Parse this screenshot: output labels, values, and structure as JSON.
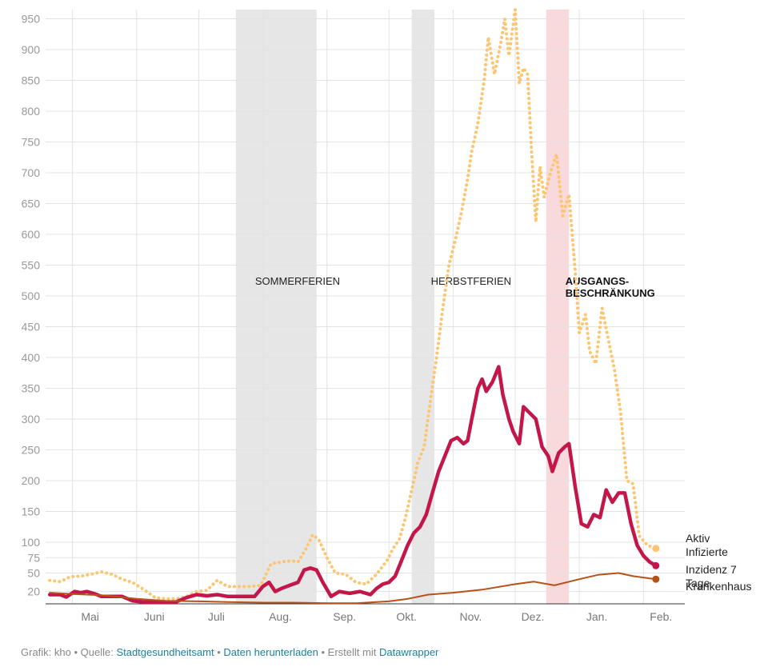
{
  "chart_data": {
    "type": "line",
    "title": "",
    "xlabel": "",
    "ylabel": "",
    "ylim": [
      0,
      965
    ],
    "yticks": [
      20,
      50,
      75,
      100,
      150,
      200,
      250,
      300,
      350,
      400,
      450,
      500,
      550,
      600,
      650,
      700,
      750,
      800,
      850,
      900,
      950
    ],
    "grid": true,
    "xlim": [
      "2020-04-18",
      "2021-02-21"
    ],
    "xticks": [
      {
        "date": "2020-05-01",
        "label": "Mai"
      },
      {
        "date": "2020-06-01",
        "label": "Juni"
      },
      {
        "date": "2020-07-01",
        "label": "Juli"
      },
      {
        "date": "2020-08-01",
        "label": "Aug."
      },
      {
        "date": "2020-09-01",
        "label": "Sep."
      },
      {
        "date": "2020-10-01",
        "label": "Okt."
      },
      {
        "date": "2020-11-01",
        "label": "Nov."
      },
      {
        "date": "2020-12-01",
        "label": "Dez."
      },
      {
        "date": "2021-01-01",
        "label": "Jan."
      },
      {
        "date": "2021-02-01",
        "label": "Feb."
      }
    ],
    "bands": [
      {
        "name": "SOMMERFERIEN",
        "start": "2020-07-19",
        "end": "2020-08-27",
        "color": "#e6e6e6",
        "bold": false
      },
      {
        "name": "HERBSTFERIEN",
        "start": "2020-10-12",
        "end": "2020-10-23",
        "color": "#e6e6e6",
        "bold": false
      },
      {
        "name": "AUSGANGS-|BESCHRÄNKUNG",
        "start": "2020-12-16",
        "end": "2020-12-27",
        "color": "#f8d9dc",
        "bold": true
      }
    ],
    "series": [
      {
        "name": "Aktiv Infizierte",
        "label_lines": [
          "Aktiv",
          "Infizierte"
        ],
        "color": "#fdc56f",
        "style": "dotted",
        "points": [
          [
            "2020-04-20",
            38
          ],
          [
            "2020-04-25",
            36
          ],
          [
            "2020-04-30",
            44
          ],
          [
            "2020-05-05",
            45
          ],
          [
            "2020-05-10",
            48
          ],
          [
            "2020-05-15",
            52
          ],
          [
            "2020-05-20",
            48
          ],
          [
            "2020-05-25",
            40
          ],
          [
            "2020-05-30",
            35
          ],
          [
            "2020-06-05",
            22
          ],
          [
            "2020-06-10",
            10
          ],
          [
            "2020-06-15",
            8
          ],
          [
            "2020-06-20",
            8
          ],
          [
            "2020-06-25",
            12
          ],
          [
            "2020-06-30",
            20
          ],
          [
            "2020-07-05",
            22
          ],
          [
            "2020-07-10",
            38
          ],
          [
            "2020-07-15",
            28
          ],
          [
            "2020-07-20",
            28
          ],
          [
            "2020-07-25",
            28
          ],
          [
            "2020-07-31",
            30
          ],
          [
            "2020-08-05",
            65
          ],
          [
            "2020-08-10",
            68
          ],
          [
            "2020-08-15",
            70
          ],
          [
            "2020-08-18",
            68
          ],
          [
            "2020-08-22",
            90
          ],
          [
            "2020-08-25",
            112
          ],
          [
            "2020-08-28",
            105
          ],
          [
            "2020-09-01",
            75
          ],
          [
            "2020-09-05",
            50
          ],
          [
            "2020-09-10",
            48
          ],
          [
            "2020-09-15",
            35
          ],
          [
            "2020-09-20",
            32
          ],
          [
            "2020-09-25",
            48
          ],
          [
            "2020-09-30",
            70
          ],
          [
            "2020-10-03",
            90
          ],
          [
            "2020-10-06",
            105
          ],
          [
            "2020-10-09",
            140
          ],
          [
            "2020-10-12",
            185
          ],
          [
            "2020-10-15",
            230
          ],
          [
            "2020-10-18",
            255
          ],
          [
            "2020-10-21",
            330
          ],
          [
            "2020-10-24",
            400
          ],
          [
            "2020-10-27",
            480
          ],
          [
            "2020-10-30",
            550
          ],
          [
            "2020-11-02",
            590
          ],
          [
            "2020-11-05",
            635
          ],
          [
            "2020-11-08",
            690
          ],
          [
            "2020-11-10",
            735
          ],
          [
            "2020-11-13",
            780
          ],
          [
            "2020-11-16",
            850
          ],
          [
            "2020-11-18",
            920
          ],
          [
            "2020-11-21",
            860
          ],
          [
            "2020-11-24",
            910
          ],
          [
            "2020-11-26",
            950
          ],
          [
            "2020-11-28",
            890
          ],
          [
            "2020-12-01",
            965
          ],
          [
            "2020-12-03",
            845
          ],
          [
            "2020-12-05",
            870
          ],
          [
            "2020-12-07",
            860
          ],
          [
            "2020-12-09",
            730
          ],
          [
            "2020-12-11",
            620
          ],
          [
            "2020-12-13",
            710
          ],
          [
            "2020-12-15",
            660
          ],
          [
            "2020-12-18",
            700
          ],
          [
            "2020-12-21",
            730
          ],
          [
            "2020-12-24",
            630
          ],
          [
            "2020-12-27",
            665
          ],
          [
            "2020-12-30",
            540
          ],
          [
            "2021-01-01",
            440
          ],
          [
            "2021-01-04",
            470
          ],
          [
            "2021-01-06",
            410
          ],
          [
            "2021-01-09",
            390
          ],
          [
            "2021-01-12",
            480
          ],
          [
            "2021-01-15",
            430
          ],
          [
            "2021-01-18",
            380
          ],
          [
            "2021-01-21",
            310
          ],
          [
            "2021-01-24",
            200
          ],
          [
            "2021-01-27",
            195
          ],
          [
            "2021-01-30",
            110
          ],
          [
            "2021-02-03",
            95
          ],
          [
            "2021-02-07",
            90
          ]
        ]
      },
      {
        "name": "Inzidenz 7 Tage",
        "label_lines": [
          "Inzidenz 7",
          "Tage"
        ],
        "color": "#c3174a",
        "style": "solid",
        "points": [
          [
            "2020-04-20",
            15
          ],
          [
            "2020-04-25",
            15
          ],
          [
            "2020-04-28",
            11
          ],
          [
            "2020-05-02",
            20
          ],
          [
            "2020-05-05",
            18
          ],
          [
            "2020-05-08",
            20
          ],
          [
            "2020-05-12",
            16
          ],
          [
            "2020-05-15",
            12
          ],
          [
            "2020-05-20",
            12
          ],
          [
            "2020-05-25",
            12
          ],
          [
            "2020-05-30",
            5
          ],
          [
            "2020-06-05",
            3
          ],
          [
            "2020-06-10",
            3
          ],
          [
            "2020-06-15",
            3
          ],
          [
            "2020-06-20",
            3
          ],
          [
            "2020-06-25",
            10
          ],
          [
            "2020-06-30",
            15
          ],
          [
            "2020-07-05",
            13
          ],
          [
            "2020-07-10",
            15
          ],
          [
            "2020-07-15",
            12
          ],
          [
            "2020-07-20",
            12
          ],
          [
            "2020-07-25",
            12
          ],
          [
            "2020-07-28",
            12
          ],
          [
            "2020-08-01",
            28
          ],
          [
            "2020-08-04",
            35
          ],
          [
            "2020-08-07",
            20
          ],
          [
            "2020-08-10",
            25
          ],
          [
            "2020-08-14",
            30
          ],
          [
            "2020-08-18",
            35
          ],
          [
            "2020-08-21",
            55
          ],
          [
            "2020-08-24",
            58
          ],
          [
            "2020-08-27",
            55
          ],
          [
            "2020-08-30",
            35
          ],
          [
            "2020-09-03",
            12
          ],
          [
            "2020-09-07",
            20
          ],
          [
            "2020-09-12",
            17
          ],
          [
            "2020-09-17",
            20
          ],
          [
            "2020-09-22",
            15
          ],
          [
            "2020-09-25",
            25
          ],
          [
            "2020-09-28",
            32
          ],
          [
            "2020-10-01",
            35
          ],
          [
            "2020-10-04",
            45
          ],
          [
            "2020-10-07",
            70
          ],
          [
            "2020-10-10",
            95
          ],
          [
            "2020-10-13",
            115
          ],
          [
            "2020-10-16",
            125
          ],
          [
            "2020-10-19",
            145
          ],
          [
            "2020-10-22",
            180
          ],
          [
            "2020-10-25",
            215
          ],
          [
            "2020-10-28",
            240
          ],
          [
            "2020-10-31",
            265
          ],
          [
            "2020-11-03",
            270
          ],
          [
            "2020-11-06",
            260
          ],
          [
            "2020-11-08",
            265
          ],
          [
            "2020-11-10",
            300
          ],
          [
            "2020-11-13",
            350
          ],
          [
            "2020-11-15",
            365
          ],
          [
            "2020-11-17",
            345
          ],
          [
            "2020-11-20",
            360
          ],
          [
            "2020-11-23",
            385
          ],
          [
            "2020-11-25",
            340
          ],
          [
            "2020-11-28",
            300
          ],
          [
            "2020-11-30",
            280
          ],
          [
            "2020-12-03",
            260
          ],
          [
            "2020-12-05",
            320
          ],
          [
            "2020-12-08",
            310
          ],
          [
            "2020-12-11",
            300
          ],
          [
            "2020-12-14",
            255
          ],
          [
            "2020-12-17",
            240
          ],
          [
            "2020-12-19",
            215
          ],
          [
            "2020-12-22",
            245
          ],
          [
            "2020-12-25",
            255
          ],
          [
            "2020-12-27",
            260
          ],
          [
            "2020-12-30",
            190
          ],
          [
            "2021-01-02",
            130
          ],
          [
            "2021-01-05",
            125
          ],
          [
            "2021-01-08",
            145
          ],
          [
            "2021-01-11",
            140
          ],
          [
            "2021-01-14",
            185
          ],
          [
            "2021-01-17",
            165
          ],
          [
            "2021-01-20",
            180
          ],
          [
            "2021-01-23",
            180
          ],
          [
            "2021-01-26",
            130
          ],
          [
            "2021-01-29",
            95
          ],
          [
            "2021-02-01",
            78
          ],
          [
            "2021-02-04",
            68
          ],
          [
            "2021-02-07",
            62
          ]
        ]
      },
      {
        "name": "Krankenhaus",
        "label_lines": [
          "Krankenhaus"
        ],
        "color": "#b65217",
        "style": "solid",
        "points": [
          [
            "2020-04-20",
            18
          ],
          [
            "2020-05-01",
            16
          ],
          [
            "2020-05-15",
            14
          ],
          [
            "2020-06-01",
            8
          ],
          [
            "2020-06-15",
            5
          ],
          [
            "2020-07-01",
            4
          ],
          [
            "2020-07-15",
            3
          ],
          [
            "2020-08-01",
            2
          ],
          [
            "2020-08-15",
            2
          ],
          [
            "2020-09-01",
            1
          ],
          [
            "2020-09-15",
            1
          ],
          [
            "2020-10-01",
            4
          ],
          [
            "2020-10-10",
            8
          ],
          [
            "2020-10-20",
            15
          ],
          [
            "2020-11-01",
            18
          ],
          [
            "2020-11-15",
            23
          ],
          [
            "2020-12-01",
            32
          ],
          [
            "2020-12-10",
            36
          ],
          [
            "2020-12-20",
            30
          ],
          [
            "2021-01-01",
            40
          ],
          [
            "2021-01-10",
            47
          ],
          [
            "2021-01-20",
            50
          ],
          [
            "2021-01-27",
            45
          ],
          [
            "2021-02-07",
            40
          ]
        ]
      }
    ]
  },
  "footer": {
    "prefix": "Grafik: kho • Quelle: ",
    "source_link": "Stadtgesundheitsamt",
    "sep1": " • ",
    "download_link": "Daten herunterladen",
    "sep2": " • Erstellt mit ",
    "tool_link": "Datawrapper"
  }
}
